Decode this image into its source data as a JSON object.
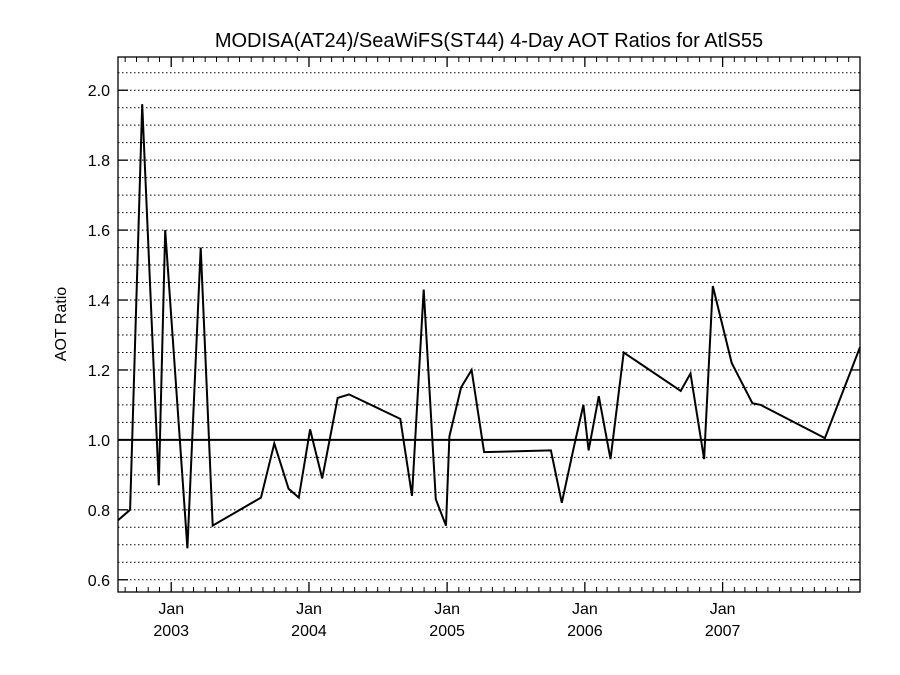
{
  "chart_data": {
    "type": "line",
    "title": "MODISA(AT24)/SeaWiFS(ST44) 4-Day AOT Ratios for AtlS55",
    "ylabel": "AOT Ratio",
    "xlabel": "",
    "x_range": [
      "2002-08-13",
      "2007-12-31"
    ],
    "ylim": [
      0.565,
      2.095
    ],
    "y_ticks": [
      0.6,
      0.8,
      1.0,
      1.2,
      1.4,
      1.6,
      1.8,
      2.0
    ],
    "y_tick_labels": [
      "0.6",
      "0.8",
      "1.0",
      "1.2",
      "1.4",
      "1.6",
      "1.8",
      "2.0"
    ],
    "x_ticks": [
      {
        "date": "2003-01-01",
        "month": "Jan",
        "year": "2003"
      },
      {
        "date": "2004-01-01",
        "month": "Jan",
        "year": "2004"
      },
      {
        "date": "2005-01-01",
        "month": "Jan",
        "year": "2005"
      },
      {
        "date": "2006-01-01",
        "month": "Jan",
        "year": "2006"
      },
      {
        "date": "2007-01-01",
        "month": "Jan",
        "year": "2007"
      }
    ],
    "reference_line": 1.0,
    "grid": "horizontal dotted",
    "series": [
      {
        "color": "#000000",
        "points": [
          [
            "2002-08-13",
            0.77
          ],
          [
            "2002-09-14",
            0.8
          ],
          [
            "2002-10-16",
            1.96
          ],
          [
            "2002-11-29",
            0.87
          ],
          [
            "2002-12-16",
            1.6
          ],
          [
            "2003-02-13",
            0.69
          ],
          [
            "2003-03-20",
            1.55
          ],
          [
            "2003-04-21",
            0.755
          ],
          [
            "2003-08-27",
            0.835
          ],
          [
            "2003-10-01",
            0.99
          ],
          [
            "2003-11-08",
            0.86
          ],
          [
            "2003-12-05",
            0.835
          ],
          [
            "2004-01-04",
            1.03
          ],
          [
            "2004-02-05",
            0.89
          ],
          [
            "2004-03-17",
            1.12
          ],
          [
            "2004-04-16",
            1.13
          ],
          [
            "2004-08-30",
            1.06
          ],
          [
            "2004-09-30",
            0.84
          ],
          [
            "2004-10-31",
            1.43
          ],
          [
            "2004-12-02",
            0.83
          ],
          [
            "2004-12-29",
            0.755
          ],
          [
            "2005-01-07",
            1.01
          ],
          [
            "2005-02-07",
            1.15
          ],
          [
            "2005-03-07",
            1.2
          ],
          [
            "2005-04-09",
            0.965
          ],
          [
            "2005-10-03",
            0.97
          ],
          [
            "2005-11-01",
            0.82
          ],
          [
            "2005-12-03",
            0.98
          ],
          [
            "2005-12-28",
            1.1
          ],
          [
            "2006-01-11",
            0.97
          ],
          [
            "2006-02-07",
            1.125
          ],
          [
            "2006-03-10",
            0.945
          ],
          [
            "2006-04-14",
            1.25
          ],
          [
            "2006-09-12",
            1.14
          ],
          [
            "2006-10-08",
            1.19
          ],
          [
            "2006-11-13",
            0.945
          ],
          [
            "2006-12-06",
            1.44
          ],
          [
            "2007-01-25",
            1.22
          ],
          [
            "2007-03-21",
            1.105
          ],
          [
            "2007-04-12",
            1.1
          ],
          [
            "2007-09-29",
            1.005
          ],
          [
            "2007-12-31",
            1.265
          ]
        ]
      }
    ]
  }
}
